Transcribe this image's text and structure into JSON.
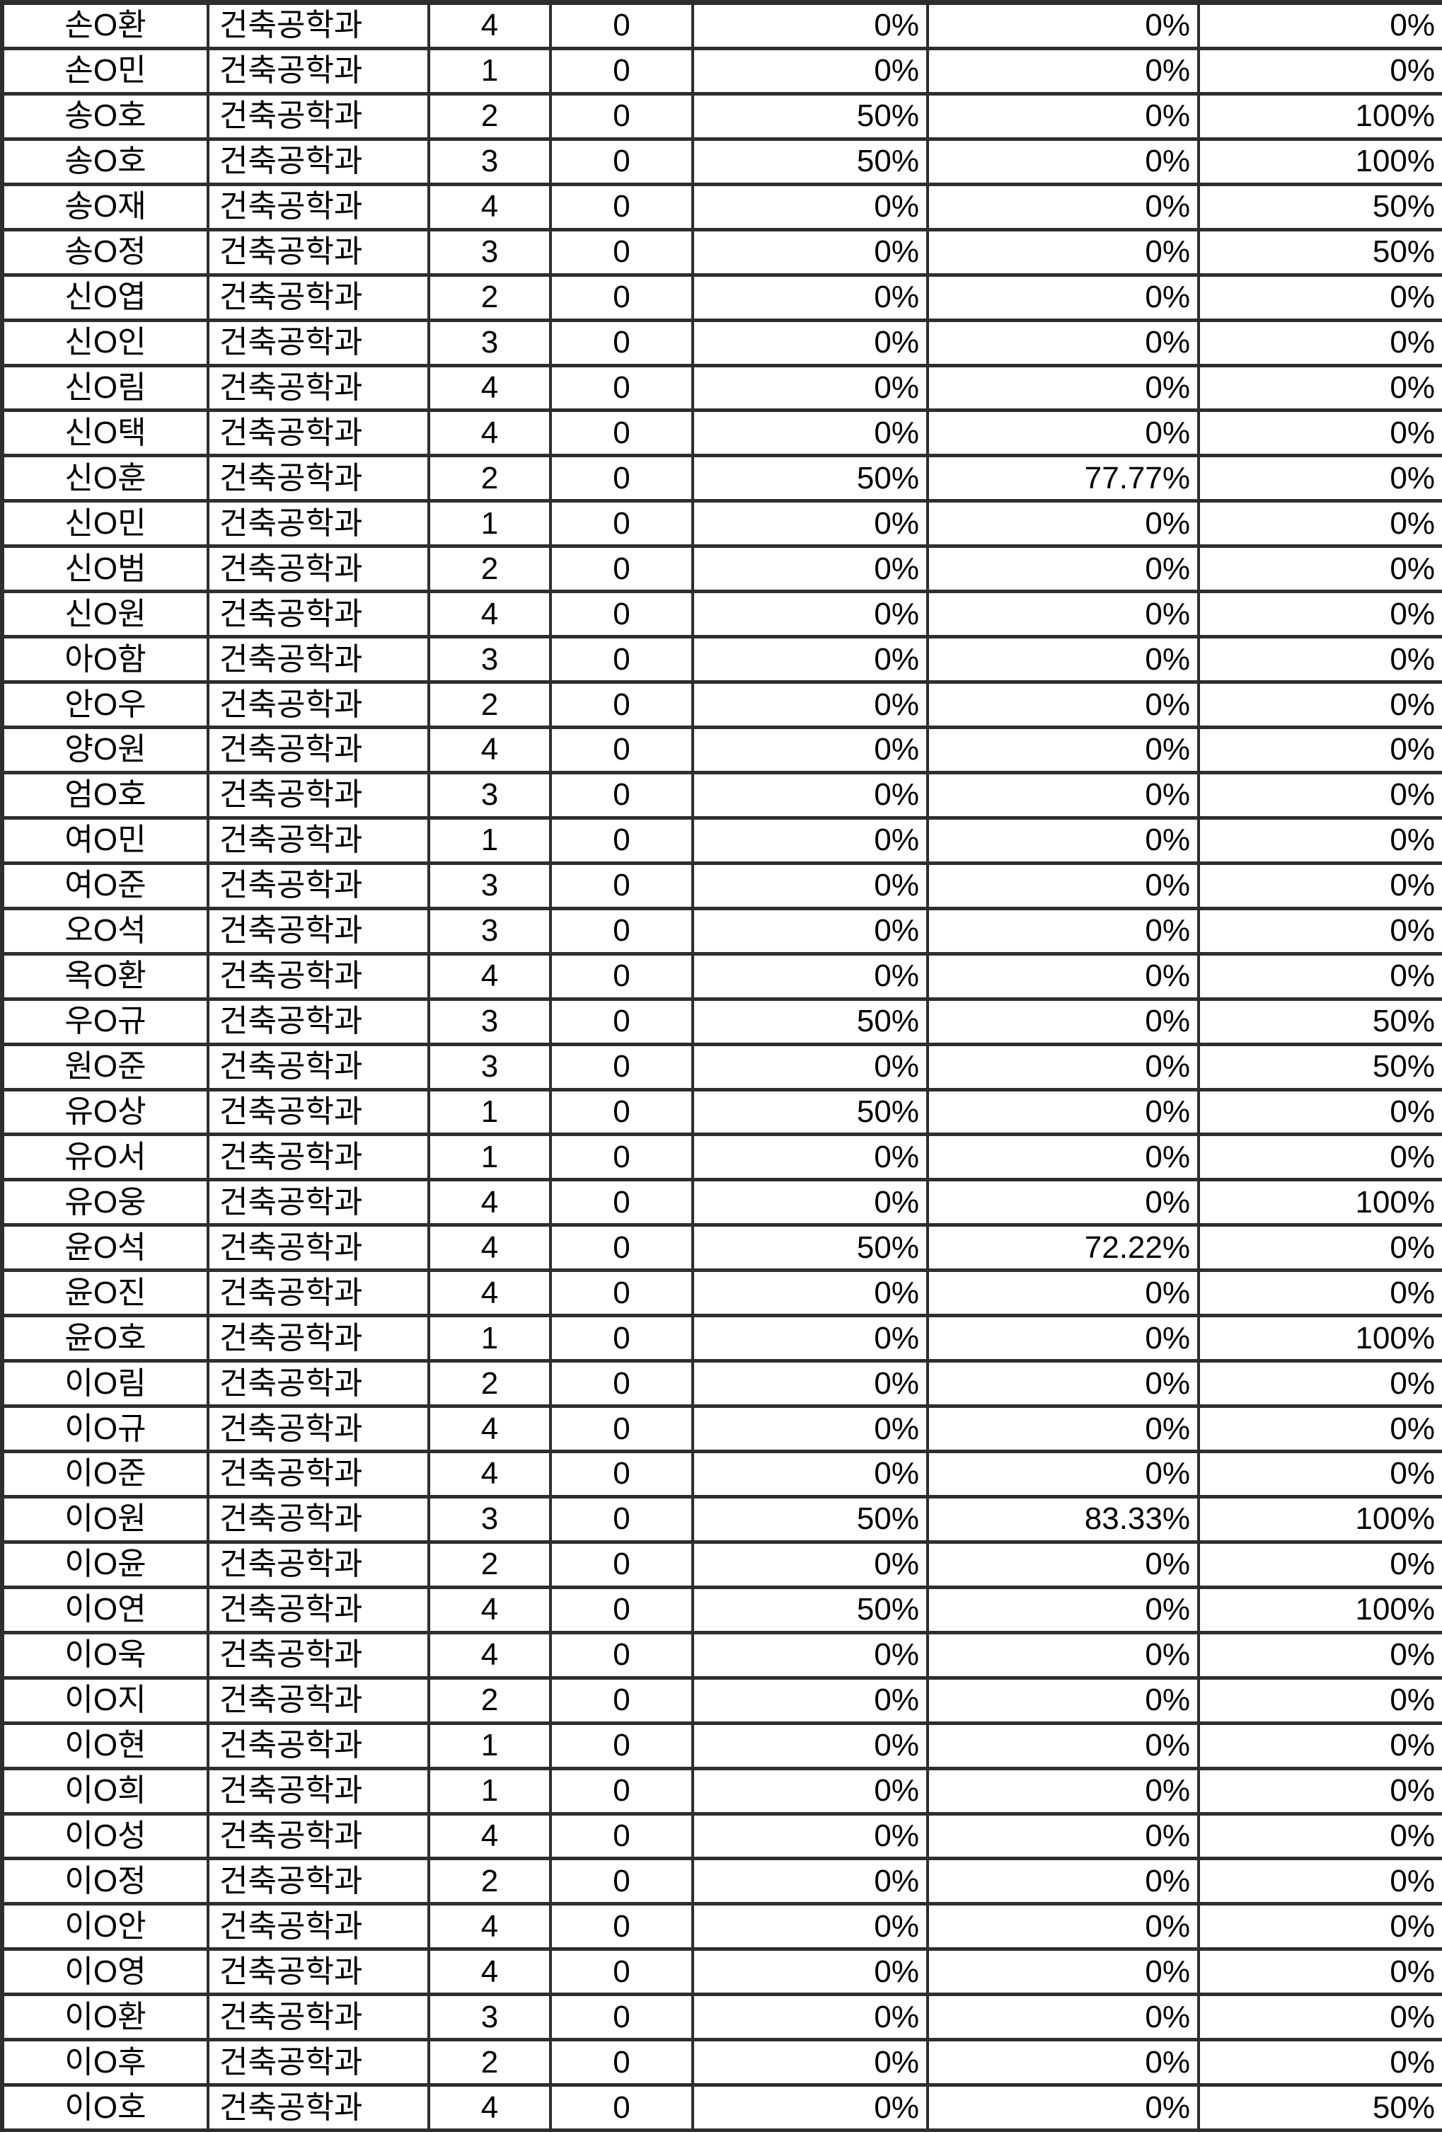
{
  "colors": {
    "border": "#2e2e2e",
    "background": "#ffffff",
    "text": "#000000"
  },
  "table": {
    "visible_row_count": 47,
    "rows": [
      [
        "손O환",
        "건축공학과",
        "4",
        "0",
        "0%",
        "0%",
        "0%"
      ],
      [
        "손O민",
        "건축공학과",
        "1",
        "0",
        "0%",
        "0%",
        "0%"
      ],
      [
        "송O호",
        "건축공학과",
        "2",
        "0",
        "50%",
        "0%",
        "100%"
      ],
      [
        "송O호",
        "건축공학과",
        "3",
        "0",
        "50%",
        "0%",
        "100%"
      ],
      [
        "송O재",
        "건축공학과",
        "4",
        "0",
        "0%",
        "0%",
        "50%"
      ],
      [
        "송O정",
        "건축공학과",
        "3",
        "0",
        "0%",
        "0%",
        "50%"
      ],
      [
        "신O엽",
        "건축공학과",
        "2",
        "0",
        "0%",
        "0%",
        "0%"
      ],
      [
        "신O인",
        "건축공학과",
        "3",
        "0",
        "0%",
        "0%",
        "0%"
      ],
      [
        "신O림",
        "건축공학과",
        "4",
        "0",
        "0%",
        "0%",
        "0%"
      ],
      [
        "신O택",
        "건축공학과",
        "4",
        "0",
        "0%",
        "0%",
        "0%"
      ],
      [
        "신O훈",
        "건축공학과",
        "2",
        "0",
        "50%",
        "77.77%",
        "0%"
      ],
      [
        "신O민",
        "건축공학과",
        "1",
        "0",
        "0%",
        "0%",
        "0%"
      ],
      [
        "신O범",
        "건축공학과",
        "2",
        "0",
        "0%",
        "0%",
        "0%"
      ],
      [
        "신O원",
        "건축공학과",
        "4",
        "0",
        "0%",
        "0%",
        "0%"
      ],
      [
        "아O함",
        "건축공학과",
        "3",
        "0",
        "0%",
        "0%",
        "0%"
      ],
      [
        "안O우",
        "건축공학과",
        "2",
        "0",
        "0%",
        "0%",
        "0%"
      ],
      [
        "양O원",
        "건축공학과",
        "4",
        "0",
        "0%",
        "0%",
        "0%"
      ],
      [
        "엄O호",
        "건축공학과",
        "3",
        "0",
        "0%",
        "0%",
        "0%"
      ],
      [
        "여O민",
        "건축공학과",
        "1",
        "0",
        "0%",
        "0%",
        "0%"
      ],
      [
        "여O준",
        "건축공학과",
        "3",
        "0",
        "0%",
        "0%",
        "0%"
      ],
      [
        "오O석",
        "건축공학과",
        "3",
        "0",
        "0%",
        "0%",
        "0%"
      ],
      [
        "옥O환",
        "건축공학과",
        "4",
        "0",
        "0%",
        "0%",
        "0%"
      ],
      [
        "우O규",
        "건축공학과",
        "3",
        "0",
        "50%",
        "0%",
        "50%"
      ],
      [
        "원O준",
        "건축공학과",
        "3",
        "0",
        "0%",
        "0%",
        "50%"
      ],
      [
        "유O상",
        "건축공학과",
        "1",
        "0",
        "50%",
        "0%",
        "0%"
      ],
      [
        "유O서",
        "건축공학과",
        "1",
        "0",
        "0%",
        "0%",
        "0%"
      ],
      [
        "유O웅",
        "건축공학과",
        "4",
        "0",
        "0%",
        "0%",
        "100%"
      ],
      [
        "윤O석",
        "건축공학과",
        "4",
        "0",
        "50%",
        "72.22%",
        "0%"
      ],
      [
        "윤O진",
        "건축공학과",
        "4",
        "0",
        "0%",
        "0%",
        "0%"
      ],
      [
        "윤O호",
        "건축공학과",
        "1",
        "0",
        "0%",
        "0%",
        "100%"
      ],
      [
        "이O림",
        "건축공학과",
        "2",
        "0",
        "0%",
        "0%",
        "0%"
      ],
      [
        "이O규",
        "건축공학과",
        "4",
        "0",
        "0%",
        "0%",
        "0%"
      ],
      [
        "이O준",
        "건축공학과",
        "4",
        "0",
        "0%",
        "0%",
        "0%"
      ],
      [
        "이O원",
        "건축공학과",
        "3",
        "0",
        "50%",
        "83.33%",
        "100%"
      ],
      [
        "이O윤",
        "건축공학과",
        "2",
        "0",
        "0%",
        "0%",
        "0%"
      ],
      [
        "이O연",
        "건축공학과",
        "4",
        "0",
        "50%",
        "0%",
        "100%"
      ],
      [
        "이O욱",
        "건축공학과",
        "4",
        "0",
        "0%",
        "0%",
        "0%"
      ],
      [
        "이O지",
        "건축공학과",
        "2",
        "0",
        "0%",
        "0%",
        "0%"
      ],
      [
        "이O현",
        "건축공학과",
        "1",
        "0",
        "0%",
        "0%",
        "0%"
      ],
      [
        "이O희",
        "건축공학과",
        "1",
        "0",
        "0%",
        "0%",
        "0%"
      ],
      [
        "이O성",
        "건축공학과",
        "4",
        "0",
        "0%",
        "0%",
        "0%"
      ],
      [
        "이O정",
        "건축공학과",
        "2",
        "0",
        "0%",
        "0%",
        "0%"
      ],
      [
        "이O안",
        "건축공학과",
        "4",
        "0",
        "0%",
        "0%",
        "0%"
      ],
      [
        "이O영",
        "건축공학과",
        "4",
        "0",
        "0%",
        "0%",
        "0%"
      ],
      [
        "이O환",
        "건축공학과",
        "3",
        "0",
        "0%",
        "0%",
        "0%"
      ],
      [
        "이O후",
        "건축공학과",
        "2",
        "0",
        "0%",
        "0%",
        "0%"
      ],
      [
        "이O호",
        "건축공학과",
        "4",
        "0",
        "0%",
        "0%",
        "50%"
      ]
    ]
  }
}
